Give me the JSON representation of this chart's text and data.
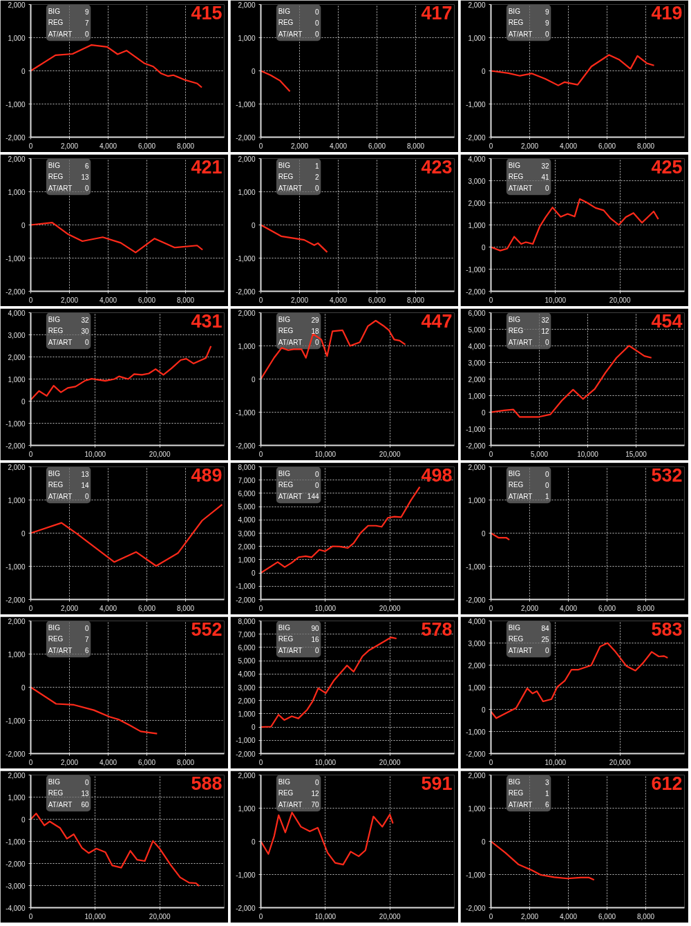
{
  "chart_data": [
    {
      "type": "line",
      "title": "415",
      "annotations": [
        "BIG",
        "9",
        "REG",
        "7",
        "AT/ART",
        "0"
      ],
      "color": "#ff2a1a",
      "grid": true,
      "xlim": [
        0,
        10000
      ],
      "xticks": [
        0,
        {
          "value": 2000,
          "label": "2,000"
        },
        {
          "value": 4000,
          "label": "4,000"
        },
        {
          "value": 6000,
          "label": "6,000"
        },
        {
          "value": 8000,
          "label": "8,000"
        }
      ],
      "ylim": [
        -2000,
        2000
      ],
      "yticks": [
        {
          "value": -2000,
          "label": "-2,000"
        },
        {
          "value": -1000,
          "label": "-1,000"
        },
        0,
        {
          "value": 1000,
          "label": "1,000"
        },
        {
          "value": 2000,
          "label": "2,000"
        }
      ],
      "x": [
        0,
        1280,
        2160,
        3140,
        3950,
        4490,
        4950,
        5860,
        6330,
        6740,
        7100,
        7370,
        7950,
        8600,
        8840
      ],
      "values": [
        0,
        470,
        510,
        780,
        720,
        500,
        610,
        230,
        130,
        -80,
        -160,
        -130,
        -270,
        -380,
        -500
      ]
    },
    {
      "type": "line",
      "title": "417",
      "annotations": [
        "BIG",
        "0",
        "REG",
        "0",
        "AT/ART",
        "0"
      ],
      "color": "#ff2a1a",
      "grid": true,
      "xlim": [
        0,
        10000
      ],
      "xticks": [
        0,
        {
          "value": 2000,
          "label": "2,000"
        },
        {
          "value": 4000,
          "label": "4,000"
        },
        {
          "value": 6000,
          "label": "6,000"
        },
        {
          "value": 8000,
          "label": "8,000"
        }
      ],
      "ylim": [
        -2000,
        2000
      ],
      "yticks": [
        {
          "value": -2000,
          "label": "-2,000"
        },
        {
          "value": -1000,
          "label": "-1,000"
        },
        0,
        {
          "value": 1000,
          "label": "1,000"
        },
        {
          "value": 2000,
          "label": "2,000"
        }
      ],
      "x": [
        0,
        500,
        1000,
        1500
      ],
      "values": [
        0,
        -130,
        -300,
        -620
      ]
    },
    {
      "type": "line",
      "title": "419",
      "annotations": [
        "BIG",
        "9",
        "REG",
        "9",
        "AT/ART",
        "0"
      ],
      "color": "#ff2a1a",
      "grid": true,
      "xlim": [
        0,
        10000
      ],
      "xticks": [
        0,
        {
          "value": 2000,
          "label": "2,000"
        },
        {
          "value": 4000,
          "label": "4,000"
        },
        {
          "value": 6000,
          "label": "6,000"
        },
        {
          "value": 8000,
          "label": "8,000"
        }
      ],
      "ylim": [
        -2000,
        2000
      ],
      "yticks": [
        {
          "value": -2000,
          "label": "-2,000"
        },
        {
          "value": -1000,
          "label": "-1,000"
        },
        0,
        {
          "value": 1000,
          "label": "1,000"
        },
        {
          "value": 2000,
          "label": "2,000"
        }
      ],
      "x": [
        0,
        900,
        1500,
        2100,
        2800,
        3480,
        3810,
        4480,
        5190,
        6100,
        6620,
        7210,
        7570,
        8050,
        8430
      ],
      "values": [
        0,
        -70,
        -150,
        -80,
        -240,
        -440,
        -340,
        -420,
        130,
        480,
        340,
        60,
        450,
        230,
        160
      ]
    },
    {
      "type": "line",
      "title": "421",
      "annotations": [
        "BIG",
        "6",
        "REG",
        "13",
        "AT/ART",
        "0"
      ],
      "color": "#ff2a1a",
      "grid": true,
      "xlim": [
        0,
        10000
      ],
      "xticks": [
        0,
        {
          "value": 2000,
          "label": "2,000"
        },
        {
          "value": 4000,
          "label": "4,000"
        },
        {
          "value": 6000,
          "label": "6,000"
        },
        {
          "value": 8000,
          "label": "8,000"
        }
      ],
      "ylim": [
        -2000,
        2000
      ],
      "yticks": [
        {
          "value": -2000,
          "label": "-2,000"
        },
        {
          "value": -1000,
          "label": "-1,000"
        },
        0,
        {
          "value": 1000,
          "label": "1,000"
        },
        {
          "value": 2000,
          "label": "2,000"
        }
      ],
      "x": [
        0,
        1110,
        1900,
        2670,
        3720,
        4650,
        5420,
        6400,
        7440,
        8600,
        8880
      ],
      "values": [
        0,
        70,
        -270,
        -490,
        -370,
        -540,
        -830,
        -410,
        -680,
        -620,
        -750
      ]
    },
    {
      "type": "line",
      "title": "423",
      "annotations": [
        "BIG",
        "1",
        "REG",
        "2",
        "AT/ART",
        "0"
      ],
      "color": "#ff2a1a",
      "grid": true,
      "xlim": [
        0,
        10000
      ],
      "xticks": [
        0,
        {
          "value": 2000,
          "label": "2,000"
        },
        {
          "value": 4000,
          "label": "4,000"
        },
        {
          "value": 6000,
          "label": "6,000"
        },
        {
          "value": 8000,
          "label": "8,000"
        }
      ],
      "ylim": [
        -2000,
        2000
      ],
      "yticks": [
        {
          "value": -2000,
          "label": "-2,000"
        },
        {
          "value": -1000,
          "label": "-1,000"
        },
        0,
        {
          "value": 1000,
          "label": "1,000"
        },
        {
          "value": 2000,
          "label": "2,000"
        }
      ],
      "x": [
        0,
        1050,
        2240,
        2760,
        2950,
        3430
      ],
      "values": [
        0,
        -340,
        -450,
        -610,
        -550,
        -820
      ]
    },
    {
      "type": "line",
      "title": "425",
      "annotations": [
        "BIG",
        "32",
        "REG",
        "41",
        "AT/ART",
        "0"
      ],
      "color": "#ff2a1a",
      "grid": true,
      "xlim": [
        0,
        30000
      ],
      "xticks": [
        0,
        {
          "value": 10000,
          "label": "10,000"
        },
        {
          "value": 20000,
          "label": "20,000"
        }
      ],
      "ylim": [
        -2000,
        4000
      ],
      "yticks": [
        {
          "value": -2000,
          "label": "-2,000"
        },
        {
          "value": -1000,
          "label": "-1,000"
        },
        0,
        {
          "value": 1000,
          "label": "1,000"
        },
        {
          "value": 2000,
          "label": "2,000"
        },
        {
          "value": 3000,
          "label": "3,000"
        },
        {
          "value": 4000,
          "label": "4,000"
        }
      ],
      "x": [
        0,
        1440,
        2520,
        3600,
        4680,
        5400,
        6490,
        7570,
        8470,
        9550,
        10810,
        11890,
        12970,
        13770,
        14770,
        16220,
        17480,
        18560,
        19820,
        20900,
        22090,
        23420,
        25230,
        25950
      ],
      "values": [
        0,
        -160,
        -70,
        470,
        140,
        220,
        140,
        930,
        1350,
        1790,
        1370,
        1500,
        1380,
        2170,
        2030,
        1770,
        1660,
        1290,
        1000,
        1350,
        1540,
        1100,
        1610,
        1260
      ]
    },
    {
      "type": "line",
      "title": "431",
      "annotations": [
        "BIG",
        "32",
        "REG",
        "30",
        "AT/ART",
        "0"
      ],
      "color": "#ff2a1a",
      "grid": true,
      "xlim": [
        0,
        30000
      ],
      "xticks": [
        0,
        {
          "value": 10000,
          "label": "10,000"
        },
        {
          "value": 20000,
          "label": "20,000"
        }
      ],
      "ylim": [
        -2000,
        4000
      ],
      "yticks": [
        {
          "value": -2000,
          "label": "-2,000"
        },
        {
          "value": -1000,
          "label": "-1,000"
        },
        0,
        {
          "value": 1000,
          "label": "1,000"
        },
        {
          "value": 2000,
          "label": "2,000"
        },
        {
          "value": 3000,
          "label": "3,000"
        },
        {
          "value": 4000,
          "label": "4,000"
        }
      ],
      "x": [
        0,
        1280,
        2480,
        3550,
        4680,
        5740,
        6950,
        8370,
        9430,
        11560,
        12980,
        13690,
        15110,
        16030,
        17230,
        18300,
        19360,
        20570,
        21840,
        23260,
        24110,
        25250,
        27160,
        27940
      ],
      "values": [
        60,
        460,
        240,
        700,
        400,
        600,
        660,
        920,
        1010,
        920,
        1000,
        1120,
        1000,
        1220,
        1190,
        1250,
        1450,
        1190,
        1490,
        1860,
        1920,
        1700,
        1950,
        2490
      ]
    },
    {
      "type": "line",
      "title": "447",
      "annotations": [
        "BIG",
        "29",
        "REG",
        "18",
        "AT/ART",
        "0"
      ],
      "color": "#ff2a1a",
      "grid": true,
      "xlim": [
        0,
        30000
      ],
      "xticks": [
        0,
        {
          "value": 10000,
          "label": "10,000"
        },
        {
          "value": 20000,
          "label": "20,000"
        }
      ],
      "ylim": [
        -2000,
        2000
      ],
      "yticks": [
        {
          "value": -2000,
          "label": "-2,000"
        },
        {
          "value": -1000,
          "label": "-1,000"
        },
        0,
        {
          "value": 1000,
          "label": "1,000"
        },
        {
          "value": 2000,
          "label": "2,000"
        }
      ],
      "x": [
        0,
        2050,
        3220,
        4250,
        5070,
        6300,
        6990,
        8080,
        9380,
        10270,
        11100,
        12670,
        13840,
        15340,
        16580,
        17810,
        18970,
        19860,
        20680,
        21510,
        22400
      ],
      "values": [
        0,
        640,
        940,
        870,
        900,
        900,
        640,
        1360,
        1190,
        690,
        1440,
        1470,
        1000,
        1110,
        1590,
        1760,
        1610,
        1470,
        1190,
        1160,
        1040
      ]
    },
    {
      "type": "line",
      "title": "454",
      "annotations": [
        "BIG",
        "32",
        "REG",
        "12",
        "AT/ART",
        "0"
      ],
      "color": "#ff2a1a",
      "grid": true,
      "xlim": [
        0,
        20000
      ],
      "xticks": [
        0,
        {
          "value": 5000,
          "label": "5,000"
        },
        {
          "value": 10000,
          "label": "10,000"
        },
        {
          "value": 15000,
          "label": "15,000"
        }
      ],
      "ylim": [
        -2000,
        6000
      ],
      "yticks": [
        {
          "value": -2000,
          "label": "-2,000"
        },
        {
          "value": -1000,
          "label": "-1,000"
        },
        0,
        {
          "value": 1000,
          "label": "1,000"
        },
        {
          "value": 2000,
          "label": "2,000"
        },
        {
          "value": 3000,
          "label": "3,000"
        },
        {
          "value": 4000,
          "label": "4,000"
        },
        {
          "value": 5000,
          "label": "5,000"
        },
        {
          "value": 6000,
          "label": "6,000"
        }
      ],
      "x": [
        0,
        1340,
        2320,
        2980,
        4880,
        6150,
        7320,
        8490,
        9510,
        10730,
        11830,
        12980,
        14270,
        15120,
        15850,
        16590
      ],
      "values": [
        0,
        110,
        160,
        -290,
        -290,
        -130,
        700,
        1360,
        800,
        1400,
        2380,
        3280,
        4010,
        3680,
        3390,
        3280
      ]
    },
    {
      "type": "line",
      "title": "489",
      "annotations": [
        "BIG",
        "13",
        "REG",
        "14",
        "AT/ART",
        "0"
      ],
      "color": "#ff2a1a",
      "grid": true,
      "xlim": [
        0,
        10000
      ],
      "xticks": [
        0,
        {
          "value": 2000,
          "label": "2,000"
        },
        {
          "value": 4000,
          "label": "4,000"
        },
        {
          "value": 6000,
          "label": "6,000"
        },
        {
          "value": 8000,
          "label": "8,000"
        }
      ],
      "ylim": [
        -2000,
        2000
      ],
      "yticks": [
        {
          "value": -2000,
          "label": "-2,000"
        },
        {
          "value": -1000,
          "label": "-1,000"
        },
        0,
        {
          "value": 1000,
          "label": "1,000"
        },
        {
          "value": 2000,
          "label": "2,000"
        }
      ],
      "x": [
        0,
        1590,
        2390,
        3070,
        4320,
        5450,
        6480,
        7610,
        8860,
        9890
      ],
      "values": [
        0,
        310,
        -20,
        -320,
        -870,
        -570,
        -990,
        -600,
        380,
        860
      ]
    },
    {
      "type": "line",
      "title": "498",
      "annotations": [
        "BIG",
        "0",
        "REG",
        "0",
        "AT/ART",
        "144"
      ],
      "color": "#ff2a1a",
      "grid": true,
      "xlim": [
        0,
        30000
      ],
      "xticks": [
        0,
        {
          "value": 10000,
          "label": "10,000"
        },
        {
          "value": 20000,
          "label": "20,000"
        }
      ],
      "ylim": [
        -2000,
        8000
      ],
      "yticks": [
        {
          "value": -2000,
          "label": "-2,000"
        },
        {
          "value": -1000,
          "label": "-1,000"
        },
        0,
        {
          "value": 1000,
          "label": "1,000"
        },
        {
          "value": 2000,
          "label": "2,000"
        },
        {
          "value": 3000,
          "label": "3,000"
        },
        {
          "value": 4000,
          "label": "4,000"
        },
        {
          "value": 5000,
          "label": "5,000"
        },
        {
          "value": 6000,
          "label": "6,000"
        },
        {
          "value": 7000,
          "label": "7,000"
        },
        {
          "value": 8000,
          "label": "8,000"
        }
      ],
      "x": [
        0,
        2610,
        3700,
        4780,
        5870,
        6960,
        7860,
        9060,
        9930,
        11120,
        12210,
        13480,
        14380,
        15470,
        16630,
        17830,
        18730,
        19710,
        20720,
        21740,
        23260,
        24640
      ],
      "values": [
        0,
        820,
        440,
        770,
        1190,
        1260,
        1180,
        1750,
        1630,
        2010,
        1990,
        1880,
        2240,
        3020,
        3560,
        3560,
        3480,
        4160,
        4240,
        4200,
        5470,
        6480
      ]
    },
    {
      "type": "line",
      "title": "532",
      "annotations": [
        "BIG",
        "0",
        "REG",
        "0",
        "AT/ART",
        "1"
      ],
      "color": "#ff2a1a",
      "grid": true,
      "xlim": [
        0,
        10000
      ],
      "xticks": [
        0,
        {
          "value": 2000,
          "label": "2,000"
        },
        {
          "value": 4000,
          "label": "4,000"
        },
        {
          "value": 6000,
          "label": "6,000"
        },
        {
          "value": 8000,
          "label": "8,000"
        }
      ],
      "ylim": [
        -2000,
        2000
      ],
      "yticks": [
        {
          "value": -2000,
          "label": "-2,000"
        },
        {
          "value": -1000,
          "label": "-1,000"
        },
        0,
        {
          "value": 1000,
          "label": "1,000"
        },
        {
          "value": 2000,
          "label": "2,000"
        }
      ],
      "x": [
        0,
        400,
        800,
        950
      ],
      "values": [
        0,
        -140,
        -140,
        -200
      ]
    },
    {
      "type": "line",
      "title": "552",
      "annotations": [
        "BIG",
        "0",
        "REG",
        "7",
        "AT/ART",
        "6"
      ],
      "color": "#ff2a1a",
      "grid": true,
      "xlim": [
        0,
        10000
      ],
      "xticks": [
        0,
        {
          "value": 2000,
          "label": "2,000"
        },
        {
          "value": 4000,
          "label": "4,000"
        },
        {
          "value": 6000,
          "label": "6,000"
        },
        {
          "value": 8000,
          "label": "8,000"
        }
      ],
      "ylim": [
        -2000,
        2000
      ],
      "yticks": [
        {
          "value": -2000,
          "label": "-2,000"
        },
        {
          "value": -1000,
          "label": "-1,000"
        },
        0,
        {
          "value": 1000,
          "label": "1,000"
        },
        {
          "value": 2000,
          "label": "2,000"
        }
      ],
      "x": [
        0,
        1310,
        2230,
        3260,
        4070,
        4530,
        5100,
        5680,
        6530
      ],
      "values": [
        0,
        -500,
        -530,
        -690,
        -890,
        -970,
        -1140,
        -1330,
        -1400
      ]
    },
    {
      "type": "line",
      "title": "578",
      "annotations": [
        "BIG",
        "90",
        "REG",
        "16",
        "AT/ART",
        "0"
      ],
      "color": "#ff2a1a",
      "grid": true,
      "xlim": [
        0,
        30000
      ],
      "xticks": [
        0,
        {
          "value": 10000,
          "label": "10,000"
        },
        {
          "value": 20000,
          "label": "20,000"
        }
      ],
      "ylim": [
        -2000,
        8000
      ],
      "yticks": [
        {
          "value": -2000,
          "label": "-2,000"
        },
        {
          "value": -1000,
          "label": "-1,000"
        },
        0,
        {
          "value": 1000,
          "label": "1,000"
        },
        {
          "value": 2000,
          "label": "2,000"
        },
        {
          "value": 3000,
          "label": "3,000"
        },
        {
          "value": 4000,
          "label": "4,000"
        },
        {
          "value": 5000,
          "label": "5,000"
        },
        {
          "value": 6000,
          "label": "6,000"
        },
        {
          "value": 7000,
          "label": "7,000"
        },
        {
          "value": 8000,
          "label": "8,000"
        }
      ],
      "x": [
        0,
        1580,
        2740,
        3630,
        4790,
        5820,
        7190,
        8010,
        8900,
        10070,
        11300,
        13360,
        14380,
        15750,
        16780,
        17470,
        19520,
        20210,
        21030
      ],
      "values": [
        0,
        30,
        930,
        530,
        810,
        650,
        1310,
        1930,
        2930,
        2550,
        3490,
        4640,
        4170,
        5330,
        5790,
        5980,
        6570,
        6760,
        6670
      ]
    },
    {
      "type": "line",
      "title": "583",
      "annotations": [
        "BIG",
        "84",
        "REG",
        "25",
        "AT/ART",
        "0"
      ],
      "color": "#ff2a1a",
      "grid": true,
      "xlim": [
        0,
        30000
      ],
      "xticks": [
        0,
        {
          "value": 10000,
          "label": "10,000"
        },
        {
          "value": 20000,
          "label": "20,000"
        }
      ],
      "ylim": [
        -2000,
        4000
      ],
      "yticks": [
        {
          "value": -2000,
          "label": "-2,000"
        },
        {
          "value": -1000,
          "label": "-1,000"
        },
        0,
        {
          "value": 1000,
          "label": "1,000"
        },
        {
          "value": 2000,
          "label": "2,000"
        },
        {
          "value": 3000,
          "label": "3,000"
        },
        {
          "value": 4000,
          "label": "4,000"
        }
      ],
      "x": [
        0,
        820,
        2530,
        3900,
        5620,
        6440,
        7120,
        8080,
        9380,
        10270,
        11440,
        12470,
        13490,
        15550,
        16920,
        18080,
        19320,
        21030,
        22400,
        23560,
        24930,
        26030,
        26850,
        27400
      ],
      "values": [
        -100,
        -400,
        -140,
        60,
        950,
        720,
        820,
        360,
        460,
        1010,
        1290,
        1790,
        1790,
        1990,
        2840,
        3000,
        2600,
        1950,
        1750,
        2090,
        2600,
        2390,
        2410,
        2330
      ]
    },
    {
      "type": "line",
      "title": "588",
      "annotations": [
        "BIG",
        "0",
        "REG",
        "13",
        "AT/ART",
        "60"
      ],
      "color": "#ff2a1a",
      "grid": true,
      "xlim": [
        0,
        30000
      ],
      "xticks": [
        0,
        {
          "value": 10000,
          "label": "10,000"
        },
        {
          "value": 20000,
          "label": "20,000"
        }
      ],
      "ylim": [
        -4000,
        2000
      ],
      "yticks": [
        {
          "value": -4000,
          "label": "-4,000"
        },
        {
          "value": -3000,
          "label": "-3,000"
        },
        {
          "value": -2000,
          "label": "-2,000"
        },
        {
          "value": -1000,
          "label": "-1,000"
        },
        0,
        {
          "value": 1000,
          "label": "1,000"
        },
        {
          "value": 2000,
          "label": "2,000"
        }
      ],
      "x": [
        0,
        840,
        2110,
        2950,
        4560,
        5610,
        6670,
        7930,
        8980,
        10180,
        11580,
        12630,
        14040,
        15440,
        16490,
        17680,
        18950,
        20000,
        21750,
        23160,
        24560,
        25610,
        26110
      ],
      "values": [
        0,
        260,
        -280,
        -100,
        -400,
        -880,
        -680,
        -1290,
        -1530,
        -1330,
        -1490,
        -2090,
        -2190,
        -1430,
        -1830,
        -1890,
        -980,
        -1330,
        -2090,
        -2630,
        -2870,
        -2890,
        -3020
      ]
    },
    {
      "type": "line",
      "title": "591",
      "annotations": [
        "BIG",
        "0",
        "REG",
        "12",
        "AT/ART",
        "70"
      ],
      "color": "#ff2a1a",
      "grid": true,
      "xlim": [
        0,
        30000
      ],
      "xticks": [
        0,
        {
          "value": 10000,
          "label": "10,000"
        },
        {
          "value": 20000,
          "label": "20,000"
        }
      ],
      "ylim": [
        -2000,
        2000
      ],
      "yticks": [
        {
          "value": -2000,
          "label": "-2,000"
        },
        {
          "value": -1000,
          "label": "-1,000"
        },
        0,
        {
          "value": 1000,
          "label": "1,000"
        },
        {
          "value": 2000,
          "label": "2,000"
        }
      ],
      "x": [
        0,
        1170,
        2070,
        2760,
        3790,
        4830,
        6210,
        7590,
        8830,
        10340,
        11520,
        12760,
        13930,
        15170,
        16210,
        17450,
        18830,
        20000,
        20480
      ],
      "values": [
        0,
        -380,
        160,
        790,
        270,
        870,
        440,
        300,
        410,
        -340,
        -650,
        -700,
        -310,
        -450,
        -270,
        750,
        440,
        810,
        540
      ]
    },
    {
      "type": "line",
      "title": "612",
      "annotations": [
        "BIG",
        "3",
        "REG",
        "1",
        "AT/ART",
        "6"
      ],
      "color": "#ff2a1a",
      "grid": true,
      "xlim": [
        0,
        10000
      ],
      "xticks": [
        0,
        {
          "value": 2000,
          "label": "2,000"
        },
        {
          "value": 4000,
          "label": "4,000"
        },
        {
          "value": 6000,
          "label": "6,000"
        },
        {
          "value": 8000,
          "label": "8,000"
        }
      ],
      "ylim": [
        -2000,
        2000
      ],
      "yticks": [
        {
          "value": -2000,
          "label": "-2,000"
        },
        {
          "value": -1000,
          "label": "-1,000"
        },
        0,
        {
          "value": 1000,
          "label": "1,000"
        },
        {
          "value": 2000,
          "label": "2,000"
        }
      ],
      "x": [
        0,
        740,
        1430,
        2110,
        2570,
        3260,
        3950,
        4640,
        5050,
        5330
      ],
      "values": [
        0,
        -340,
        -700,
        -870,
        -1010,
        -1080,
        -1120,
        -1090,
        -1090,
        -1160
      ]
    }
  ]
}
